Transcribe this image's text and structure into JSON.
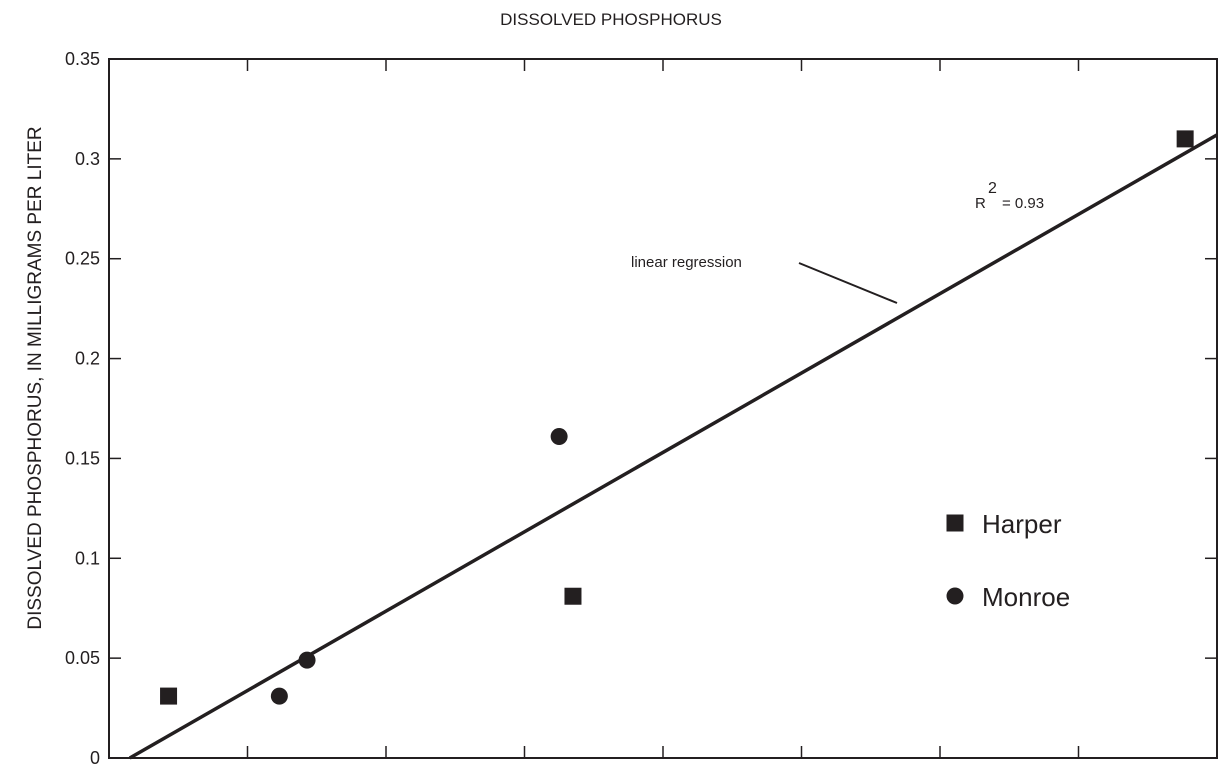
{
  "chart_data": {
    "type": "scatter",
    "title": "DISSOLVED PHOSPHORUS",
    "xlabel": "",
    "ylabel": "DISSOLVED PHOSPHORUS, IN MILLIGRAMS PER LITER",
    "ylim": [
      0,
      0.35
    ],
    "xlim": [
      0,
      8
    ],
    "y_ticks": [
      "0",
      "0.05",
      "0.1",
      "0.15",
      "0.2",
      "0.25",
      "0.3",
      "0.35"
    ],
    "y_tick_values": [
      0,
      0.05,
      0.1,
      0.15,
      0.2,
      0.25,
      0.3,
      0.35
    ],
    "x_tick_values": [
      1,
      2,
      3,
      4,
      5,
      6,
      7
    ],
    "x_tick_labels_visible": false,
    "grid": false,
    "legend_position": "right",
    "series": [
      {
        "name": "Harper",
        "marker": "square",
        "color": "#231f20",
        "points": [
          {
            "x": 0.43,
            "y": 0.031
          },
          {
            "x": 3.35,
            "y": 0.081
          },
          {
            "x": 7.77,
            "y": 0.31
          }
        ]
      },
      {
        "name": "Monroe",
        "marker": "circle",
        "color": "#231f20",
        "points": [
          {
            "x": 1.23,
            "y": 0.031
          },
          {
            "x": 1.43,
            "y": 0.049
          },
          {
            "x": 3.25,
            "y": 0.161
          }
        ]
      }
    ],
    "regression": {
      "label": "linear regression",
      "r2_prefix": "R",
      "r2_exponent": "2",
      "r2_value": "= 0.93",
      "x_range": [
        0.15,
        8
      ],
      "y_range": [
        0,
        0.312
      ]
    },
    "colors": {
      "ink": "#231f20",
      "background": "#ffffff"
    }
  }
}
